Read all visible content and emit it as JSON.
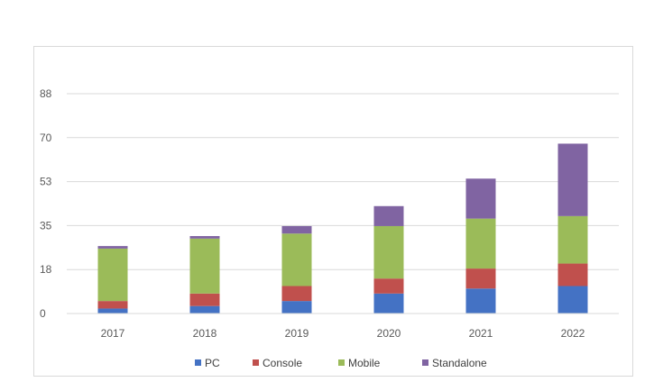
{
  "chart_data": {
    "type": "bar",
    "stacked": true,
    "categories": [
      "2017",
      "2018",
      "2019",
      "2020",
      "2021",
      "2022"
    ],
    "series": [
      {
        "name": "PC",
        "color": "#4472c4",
        "values": [
          2,
          3,
          5,
          8,
          10,
          11
        ]
      },
      {
        "name": "Console",
        "color": "#c0504d",
        "values": [
          3,
          5,
          6,
          6,
          8,
          9
        ]
      },
      {
        "name": "Mobile",
        "color": "#9bbb59",
        "values": [
          21,
          22,
          21,
          21,
          20,
          19
        ]
      },
      {
        "name": "Standalone",
        "color": "#8064a2",
        "values": [
          1,
          1,
          3,
          8,
          16,
          29
        ]
      }
    ],
    "y_ticks": [
      {
        "value": 0,
        "label": "0"
      },
      {
        "value": 17.6,
        "label": "18"
      },
      {
        "value": 35.2,
        "label": "35"
      },
      {
        "value": 52.8,
        "label": "53"
      },
      {
        "value": 70.4,
        "label": "70"
      },
      {
        "value": 88,
        "label": "88"
      }
    ],
    "ylim": [
      0,
      88
    ],
    "grid": true,
    "legend_position": "bottom"
  }
}
